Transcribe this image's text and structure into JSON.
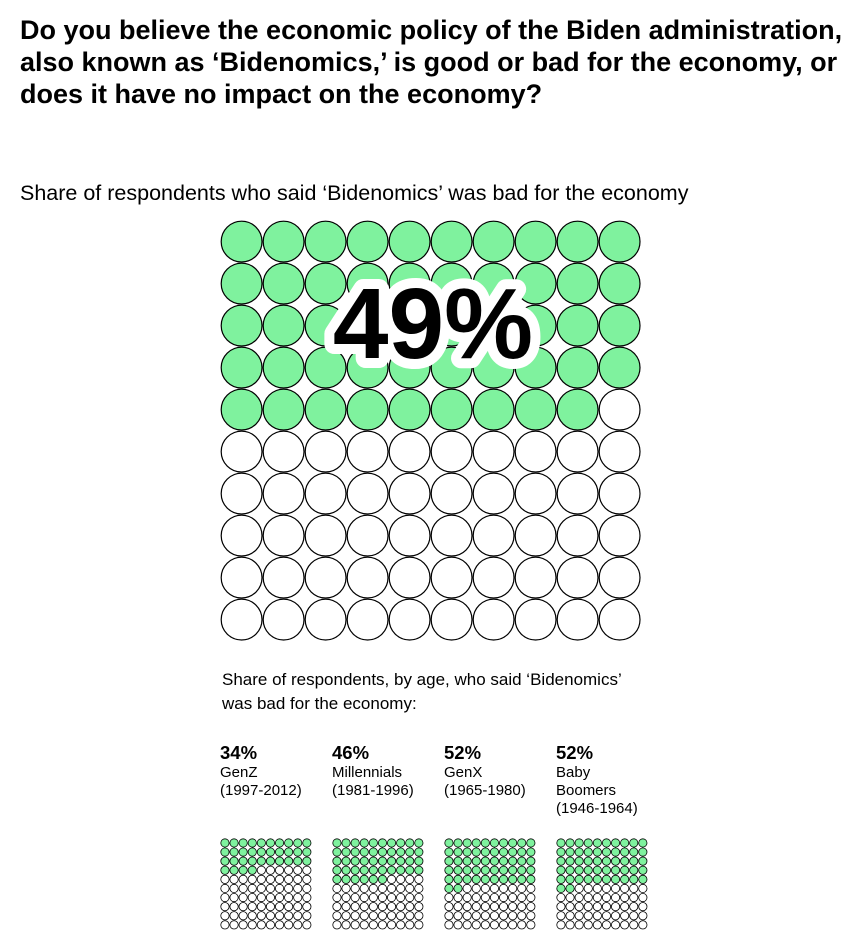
{
  "title": "Do you believe the economic policy of the Biden administration, also known as ‘Bidenomics,’ is good or bad for the economy, or does it have no impact on the economy?",
  "subtitle": "Share of respondents who said ‘Bidenomics’ was bad for the economy",
  "age_caption": "Share of respondents, by age, who said ‘Bidenomics’ was bad for the economy:",
  "colors": {
    "filled": "#7ff29e",
    "empty": "#ffffff",
    "outline": "#000000",
    "text": "#000000"
  },
  "chart_data": [
    {
      "type": "waffle",
      "grid": [
        10,
        10
      ],
      "total": 100,
      "value": 49,
      "label": "49%",
      "subtitle": "Share of respondents who said ‘Bidenomics’ was bad for the economy"
    },
    {
      "type": "waffle",
      "title": "Share of respondents, by age, who said ‘Bidenomics’ was bad for the economy:",
      "grid": [
        10,
        10
      ],
      "total": 100,
      "groups": [
        {
          "pct_label": "34%",
          "value": 34,
          "lines": [
            "GenZ",
            "(1997-2012)"
          ]
        },
        {
          "pct_label": "46%",
          "value": 46,
          "lines": [
            "Millennials",
            "(1981-1996)"
          ]
        },
        {
          "pct_label": "52%",
          "value": 52,
          "lines": [
            "GenX",
            "(1965-1980)"
          ]
        },
        {
          "pct_label": "52%",
          "value": 52,
          "lines": [
            "Baby",
            "Boomers",
            "(1946-1964)"
          ]
        }
      ]
    }
  ]
}
